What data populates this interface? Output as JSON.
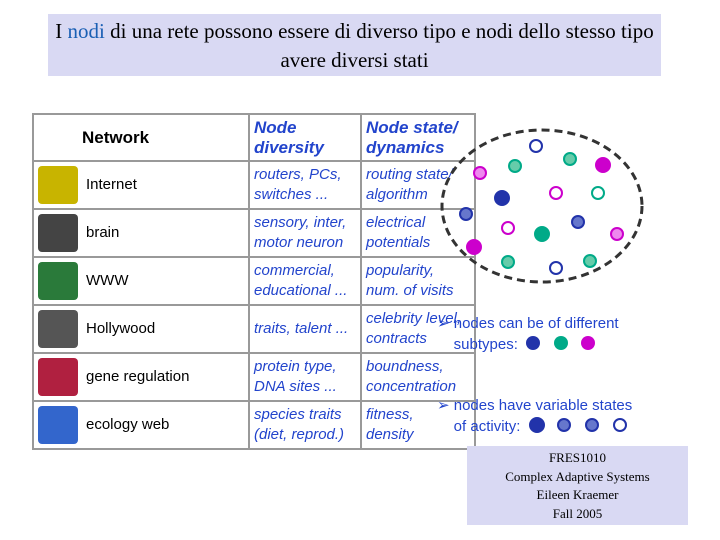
{
  "title": {
    "parts": [
      "I ",
      "nodi",
      " di una rete possono essere di diverso tipo e nodi dello stesso tipo avere diversi stati"
    ]
  },
  "table": {
    "header": [
      "Network",
      [
        "Node",
        "diversity"
      ],
      [
        "Node state/",
        "dynamics"
      ]
    ],
    "rows": [
      {
        "network": "Internet",
        "diversity": [
          "routers, PCs,",
          "switches ..."
        ],
        "state": [
          "routing state/",
          "algorithm"
        ]
      },
      {
        "network": "brain",
        "diversity": [
          "sensory, inter,",
          "motor neuron"
        ],
        "state": [
          "electrical",
          "potentials"
        ]
      },
      {
        "network": "WWW",
        "diversity": [
          "commercial,",
          "educational ..."
        ],
        "state": [
          "popularity,",
          "num. of visits"
        ]
      },
      {
        "network": "Hollywood",
        "diversity": [
          "traits, talent ..."
        ],
        "state": [
          "celebrity level,",
          "contracts"
        ]
      },
      {
        "network": "gene regulation",
        "diversity": [
          "protein type,",
          "DNA sites ..."
        ],
        "state": [
          "boundness,",
          "concentration"
        ]
      },
      {
        "network": "ecology web",
        "diversity": [
          "species traits",
          "(diet, reprod.)"
        ],
        "state": [
          "fitness,",
          "density"
        ]
      }
    ]
  },
  "bullets": [
    [
      "nodes can be of different",
      "subtypes:"
    ],
    [
      "nodes have variable states",
      "of activity:"
    ]
  ],
  "footer": [
    "FRES1010",
    "Complex Adaptive Systems",
    "Eileen Kraemer",
    "Fall 2005"
  ]
}
